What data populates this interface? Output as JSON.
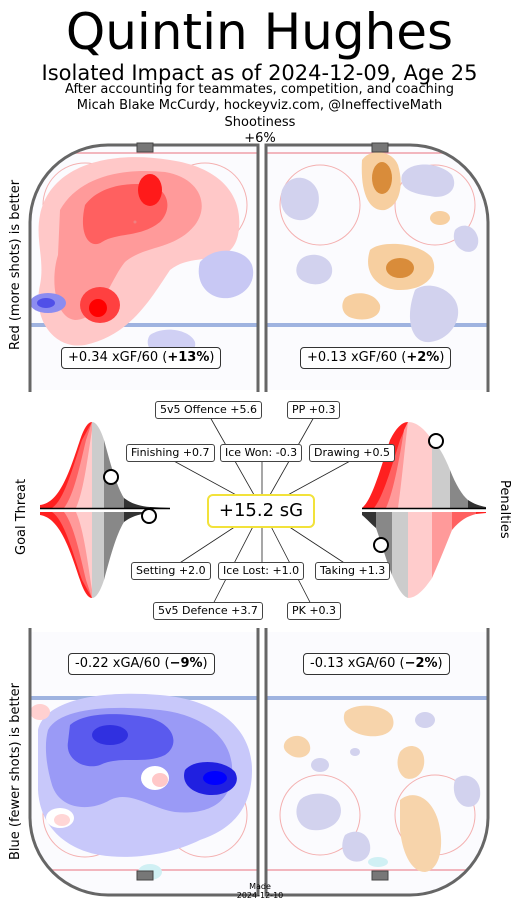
{
  "header": {
    "title": "Quintin Hughes",
    "subtitle": "Isolated Impact as of 2024-12-09, Age 25",
    "credit_line1": "After accounting for teammates, competition, and coaching",
    "credit_line2": "Micah Blake McCurdy, hockeyviz.com, @IneffectiveMath"
  },
  "shootiness": {
    "label": "Shootiness",
    "value": "+6%"
  },
  "side_labels": {
    "top": "Red (more shots) is better",
    "bottom": "Blue (fewer shots) is better",
    "left_middle": "Goal Threat",
    "right_middle": "Penalties"
  },
  "rinks": {
    "offence_5v5": {
      "prefix": "+0.34 xGF/60 (",
      "pct": "+13%",
      "suffix": ")"
    },
    "offence_pp": {
      "prefix": "+0.13 xGF/60 (",
      "pct": "+2%",
      "suffix": ")"
    },
    "defence_5v5": {
      "prefix": "-0.22 xGA/60 (",
      "pct": "−9%",
      "suffix": ")"
    },
    "defence_pk": {
      "prefix": "-0.13 xGA/60 (",
      "pct": "−2%",
      "suffix": ")"
    }
  },
  "chart_data": {
    "type": "table",
    "total": "+15.2 sG",
    "components": [
      {
        "name": "5v5 Offence",
        "value": 5.6,
        "label": "5v5 Offence +5.6"
      },
      {
        "name": "PP",
        "value": 0.3,
        "label": "PP +0.3"
      },
      {
        "name": "Finishing",
        "value": 0.7,
        "label": "Finishing +0.7"
      },
      {
        "name": "Ice Won",
        "value": -0.3,
        "label": "Ice Won: -0.3"
      },
      {
        "name": "Drawing",
        "value": 0.5,
        "label": "Drawing +0.5"
      },
      {
        "name": "Setting",
        "value": 2.0,
        "label": "Setting +2.0"
      },
      {
        "name": "Ice Lost",
        "value": 1.0,
        "label": "Ice Lost: +1.0"
      },
      {
        "name": "Taking",
        "value": 1.3,
        "label": "Taking +1.3"
      },
      {
        "name": "5v5 Defence",
        "value": 3.7,
        "label": "5v5 Defence +3.7"
      },
      {
        "name": "PK",
        "value": 0.3,
        "label": "PK +0.3"
      }
    ],
    "colors": {
      "red": "#ff0000",
      "blue": "#0000ff",
      "orange": "#d98c3a",
      "highlight": "#f2e23a",
      "rink_border": "#666666"
    }
  },
  "footer": {
    "made_label": "Made",
    "made_date": "2024-12-10"
  }
}
